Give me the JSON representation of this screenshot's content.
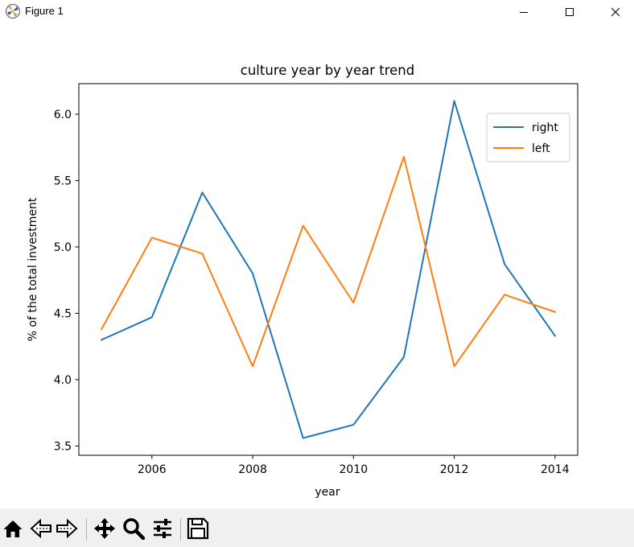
{
  "window": {
    "title": "Figure 1"
  },
  "toolbar": {
    "buttons": [
      {
        "name": "home-button",
        "icon": "home-icon"
      },
      {
        "name": "back-button",
        "icon": "back-arrow-icon"
      },
      {
        "name": "forward-button",
        "icon": "forward-arrow-icon"
      },
      {
        "name": "pan-button",
        "icon": "move-icon"
      },
      {
        "name": "zoom-button",
        "icon": "zoom-icon"
      },
      {
        "name": "configure-subplots-button",
        "icon": "sliders-icon"
      },
      {
        "name": "save-button",
        "icon": "save-icon"
      }
    ]
  },
  "chart_data": {
    "type": "line",
    "title": "culture year by year trend",
    "xlabel": "year",
    "ylabel": "% of the total investment",
    "x": [
      2005,
      2006,
      2007,
      2008,
      2009,
      2010,
      2011,
      2012,
      2013,
      2014
    ],
    "xlim": [
      2004.55,
      2014.45
    ],
    "ylim": [
      3.43,
      6.23
    ],
    "xticks": [
      2006,
      2008,
      2010,
      2012,
      2014
    ],
    "yticks": [
      3.5,
      4.0,
      4.5,
      5.0,
      5.5,
      6.0
    ],
    "ytick_labels": [
      "3.5",
      "4.0",
      "4.5",
      "5.0",
      "5.5",
      "6.0"
    ],
    "grid": false,
    "legend_position": "top-right",
    "series": [
      {
        "name": "right",
        "color": "#1f77b4",
        "values": [
          4.3,
          4.47,
          5.41,
          4.8,
          3.56,
          3.66,
          4.17,
          6.1,
          4.87,
          4.33
        ]
      },
      {
        "name": "left",
        "color": "#ff7f0e",
        "values": [
          4.38,
          5.07,
          4.95,
          4.1,
          5.16,
          4.58,
          5.68,
          4.1,
          4.64,
          4.51
        ]
      }
    ]
  }
}
